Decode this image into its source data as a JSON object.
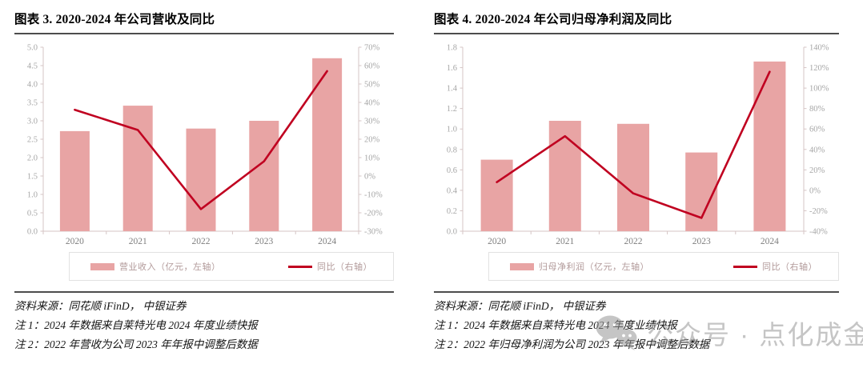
{
  "colors": {
    "bar": "#e8a4a4",
    "line": "#c00020",
    "axis_line": "#d6c5c5",
    "tick_text": "#a6a6a6",
    "xtick_text": "#7f7f7f",
    "legend_text": "#b29a9a",
    "watermark_gray": "#969696"
  },
  "watermark": {
    "icon": "wechat-icon",
    "text": "公众号 · 点化成金"
  },
  "panels": [
    {
      "title": "图表 3. 2020-2024 年公司营收及同比",
      "legend": [
        "营业收入（亿元，左轴）",
        "同比（右轴）"
      ],
      "source": "资料来源：同花顺 iFinD，  中银证券",
      "notes": [
        "注 1：2024 年数据来自莱特光电 2024 年度业绩快报",
        "注 2：2022 年营收为公司 2023 年年报中调整后数据"
      ]
    },
    {
      "title": "图表 4. 2020-2024 年公司归母净利润及同比",
      "legend": [
        "归母净利润（亿元，左轴）",
        "同比（右轴）"
      ],
      "source": "资料来源：同花顺 iFinD，  中银证券",
      "notes": [
        "注 1：2024 年数据来自莱特光电 2024 年度业绩快报",
        "注 2：2022 年归母净利润为公司 2023 年年报中调整后数据"
      ]
    }
  ],
  "chart_data": [
    {
      "type": "bar+line",
      "title": "图表 3. 2020-2024 年公司营收及同比",
      "categories": [
        "2020",
        "2021",
        "2022",
        "2023",
        "2024"
      ],
      "series": [
        {
          "name": "营业收入（亿元，左轴）",
          "type": "bar",
          "axis": "left",
          "values": [
            2.72,
            3.41,
            2.79,
            3.0,
            4.7
          ]
        },
        {
          "name": "同比（右轴）",
          "type": "line",
          "axis": "right",
          "values": [
            36,
            25,
            -18,
            8,
            57
          ]
        }
      ],
      "left_axis": {
        "min": 0,
        "max": 5.0,
        "step": 0.5,
        "decimals": 1
      },
      "right_axis": {
        "min": -30,
        "max": 70,
        "step": 10,
        "suffix": "%"
      },
      "legend_position": "bottom",
      "grid": false
    },
    {
      "type": "bar+line",
      "title": "图表 4. 2020-2024 年公司归母净利润及同比",
      "categories": [
        "2020",
        "2021",
        "2022",
        "2023",
        "2024"
      ],
      "series": [
        {
          "name": "归母净利润（亿元，左轴）",
          "type": "bar",
          "axis": "left",
          "values": [
            0.7,
            1.08,
            1.05,
            0.77,
            1.66
          ]
        },
        {
          "name": "同比（右轴）",
          "type": "line",
          "axis": "right",
          "values": [
            8,
            53,
            -3,
            -27,
            116
          ]
        }
      ],
      "left_axis": {
        "min": 0,
        "max": 1.8,
        "step": 0.2,
        "decimals": 1
      },
      "right_axis": {
        "min": -40,
        "max": 140,
        "step": 20,
        "suffix": "%"
      },
      "legend_position": "bottom",
      "grid": false
    }
  ]
}
